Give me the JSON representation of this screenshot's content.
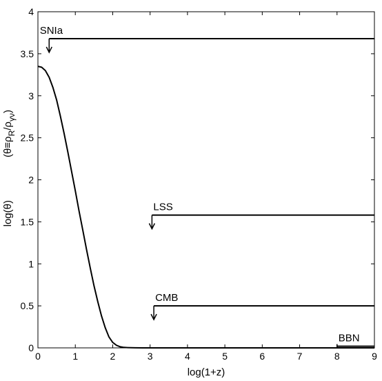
{
  "chart_data": {
    "type": "line",
    "xlabel": "log(1+z)",
    "ylabel_main": "log(θ)",
    "ylabel_def": "(θ≡ρ",
    "ylabel_def_sub": "R",
    "ylabel_def_mid": "/ρ",
    "ylabel_def_sub2": "γν",
    "ylabel_def_end": ")",
    "xlim": [
      0,
      9
    ],
    "ylim": [
      0,
      4
    ],
    "x_ticks": [
      0,
      1,
      2,
      3,
      4,
      5,
      6,
      7,
      8,
      9
    ],
    "y_ticks": [
      0,
      0.5,
      1,
      1.5,
      2,
      2.5,
      3,
      3.5,
      4
    ],
    "y_tick_labels": [
      "0",
      "0.5",
      "1",
      "1.5",
      "2",
      "2.5",
      "3",
      "3.5",
      "4"
    ],
    "grid": false,
    "series": [
      {
        "x": [
          0,
          0.1,
          0.2,
          0.3,
          0.4,
          0.5,
          0.6,
          0.7,
          0.8,
          0.9,
          1.0,
          1.1,
          1.2,
          1.3,
          1.4,
          1.5,
          1.6,
          1.7,
          1.8,
          1.9,
          2.0,
          2.1,
          2.2,
          2.3,
          2.4,
          2.5,
          2.6,
          2.8,
          3.0,
          3.5,
          4.0,
          5.0,
          6.0,
          7.0,
          8.0,
          9.0
        ],
        "y": [
          3.35,
          3.34,
          3.3,
          3.22,
          3.1,
          2.95,
          2.76,
          2.55,
          2.33,
          2.1,
          1.87,
          1.63,
          1.4,
          1.17,
          0.95,
          0.74,
          0.55,
          0.38,
          0.24,
          0.13,
          0.065,
          0.03,
          0.013,
          0.006,
          0.003,
          0.0015,
          0.0008,
          0.0003,
          0.0001,
          0,
          0,
          0,
          0,
          0,
          0,
          0
        ]
      }
    ],
    "constraints": [
      {
        "label": "SNIa",
        "x_start": 0.3,
        "x_end": 9,
        "y": 3.68
      },
      {
        "label": "LSS",
        "x_start": 3.05,
        "x_end": 9,
        "y": 1.58
      },
      {
        "label": "CMB",
        "x_start": 3.1,
        "x_end": 9,
        "y": 0.5
      },
      {
        "label": "BBN",
        "x_start": 8.0,
        "x_end": 9,
        "y": 0.02
      }
    ]
  }
}
